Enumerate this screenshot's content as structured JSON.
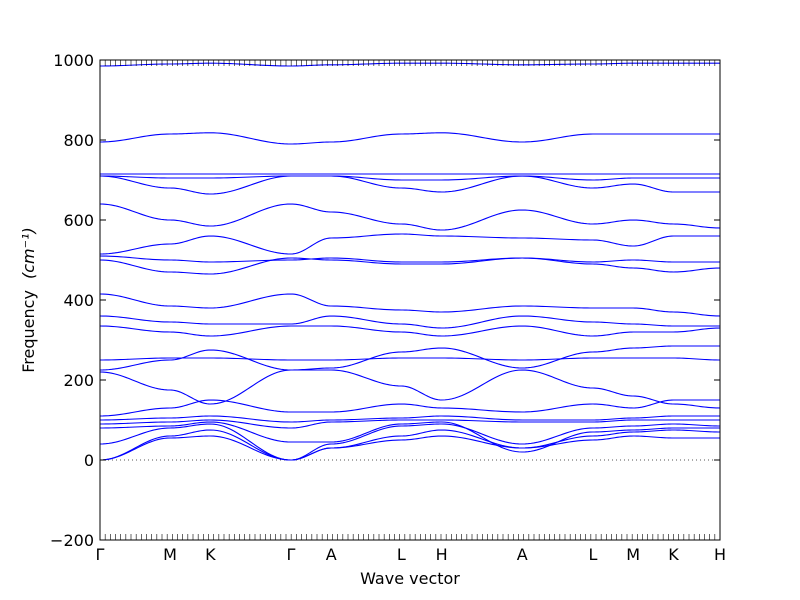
{
  "chart_data": {
    "type": "line",
    "title": "",
    "xlabel": "Wave vector",
    "ylabel": "Frequency",
    "ylabel_unit": "(cm⁻¹)",
    "ylim": [
      -200,
      1000
    ],
    "yticks": [
      -200,
      0,
      200,
      400,
      600,
      800,
      1000
    ],
    "grid": false,
    "line_color": "#0000ff",
    "zero_line_color": "#555555",
    "kpath": [
      {
        "label": "Γ",
        "x": 0.0
      },
      {
        "label": "M",
        "x": 0.113
      },
      {
        "label": "K",
        "x": 0.178
      },
      {
        "label": "Γ",
        "x": 0.308
      },
      {
        "label": "A",
        "x": 0.373
      },
      {
        "label": "L",
        "x": 0.486
      },
      {
        "label": "H",
        "x": 0.551
      },
      {
        "label": "A",
        "x": 0.681
      },
      {
        "label": "L",
        "x": 0.795
      },
      {
        "label": "M",
        "x": 0.86
      },
      {
        "label": "K",
        "x": 0.925
      },
      {
        "label": "H",
        "x": 1.0
      }
    ],
    "series": [
      {
        "values": [
          0,
          55,
          60,
          0,
          30,
          50,
          60,
          30,
          50,
          60,
          55,
          55
        ]
      },
      {
        "values": [
          0,
          60,
          75,
          0,
          30,
          60,
          75,
          30,
          60,
          70,
          75,
          70
        ]
      },
      {
        "values": [
          40,
          80,
          90,
          0,
          40,
          85,
          90,
          40,
          80,
          85,
          90,
          85
        ]
      },
      {
        "values": [
          80,
          85,
          95,
          45,
          45,
          90,
          95,
          20,
          70,
          75,
          80,
          80
        ]
      },
      {
        "values": [
          90,
          95,
          100,
          80,
          95,
          100,
          100,
          95,
          95,
          100,
          100,
          100
        ]
      },
      {
        "values": [
          100,
          105,
          110,
          95,
          100,
          105,
          110,
          100,
          100,
          105,
          110,
          110
        ]
      },
      {
        "values": [
          110,
          130,
          150,
          120,
          120,
          140,
          130,
          120,
          140,
          130,
          150,
          150
        ]
      },
      {
        "values": [
          220,
          175,
          140,
          225,
          225,
          185,
          150,
          225,
          180,
          160,
          140,
          130
        ]
      },
      {
        "values": [
          225,
          250,
          275,
          225,
          230,
          270,
          280,
          230,
          270,
          280,
          285,
          285
        ]
      },
      {
        "values": [
          250,
          255,
          255,
          250,
          250,
          255,
          255,
          250,
          255,
          255,
          255,
          250
        ]
      },
      {
        "values": [
          335,
          320,
          310,
          335,
          335,
          320,
          310,
          335,
          310,
          320,
          320,
          330
        ]
      },
      {
        "values": [
          360,
          345,
          340,
          340,
          360,
          340,
          330,
          360,
          345,
          340,
          335,
          335
        ]
      },
      {
        "values": [
          415,
          385,
          380,
          415,
          385,
          375,
          370,
          385,
          380,
          380,
          370,
          360
        ]
      },
      {
        "values": [
          500,
          470,
          465,
          505,
          500,
          490,
          490,
          505,
          490,
          480,
          470,
          480
        ]
      },
      {
        "values": [
          510,
          500,
          495,
          500,
          505,
          495,
          495,
          505,
          495,
          500,
          495,
          495
        ]
      },
      {
        "values": [
          515,
          540,
          560,
          515,
          555,
          565,
          560,
          555,
          550,
          535,
          560,
          560
        ]
      },
      {
        "values": [
          640,
          600,
          585,
          640,
          620,
          590,
          575,
          625,
          590,
          600,
          590,
          580
        ]
      },
      {
        "values": [
          710,
          680,
          665,
          710,
          710,
          680,
          670,
          710,
          680,
          690,
          670,
          670
        ]
      },
      {
        "values": [
          710,
          705,
          705,
          710,
          710,
          700,
          700,
          710,
          700,
          705,
          705,
          705
        ]
      },
      {
        "values": [
          715,
          715,
          715,
          715,
          715,
          715,
          715,
          715,
          715,
          715,
          715,
          715
        ]
      },
      {
        "values": [
          795,
          815,
          818,
          790,
          795,
          815,
          818,
          795,
          815,
          815,
          815,
          815
        ]
      },
      {
        "values": [
          985,
          990,
          992,
          985,
          988,
          992,
          992,
          988,
          990,
          992,
          992,
          992
        ]
      }
    ]
  }
}
